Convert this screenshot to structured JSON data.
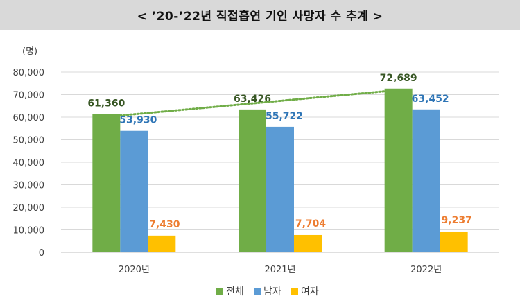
{
  "title": "< ’20-’22년 직접흡연 기인 사망자 수 추계 >",
  "chart_data": {
    "type": "bar",
    "unit_label": "(명)",
    "categories": [
      "2020년",
      "2021년",
      "2022년"
    ],
    "ylim": [
      0,
      80000
    ],
    "yticks": [
      0,
      10000,
      20000,
      30000,
      40000,
      50000,
      60000,
      70000,
      80000
    ],
    "ytick_labels": [
      "0",
      "10,000",
      "20,000",
      "30,000",
      "40,000",
      "50,000",
      "60,000",
      "70,000",
      "80,000"
    ],
    "series": [
      {
        "name": "전체",
        "color": "#70ad47",
        "label_color": "#375623",
        "values": [
          61360,
          63426,
          72689
        ],
        "labels": [
          "61,360",
          "63,426",
          "72,689"
        ]
      },
      {
        "name": "남자",
        "color": "#5b9bd5",
        "label_color": "#2e75b6",
        "values": [
          53930,
          55722,
          63452
        ],
        "labels": [
          "53,930",
          "55,722",
          "63,452"
        ]
      },
      {
        "name": "여자",
        "color": "#ffc000",
        "label_color": "#ed7d31",
        "values": [
          7430,
          7704,
          9237
        ],
        "labels": [
          "7,430",
          "7,704",
          "9,237"
        ]
      }
    ],
    "trendline": {
      "series": "전체",
      "style": "dotted",
      "color": "#70ad47"
    },
    "legend_position": "bottom",
    "grid": true
  }
}
